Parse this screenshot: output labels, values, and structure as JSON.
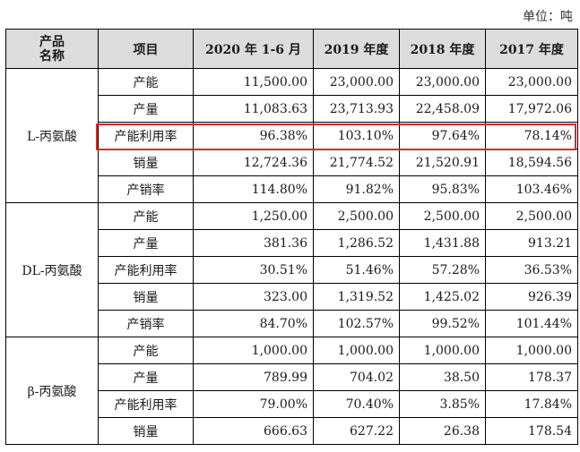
{
  "unit_label": "单位：吨",
  "headers": [
    "产品名称",
    "项目",
    "2020 年 1-6 月",
    "2019 年度",
    "2018 年度",
    "2017 年度"
  ],
  "header_product_lines": [
    "产品",
    "名称"
  ],
  "highlight_color": "#d62b2b",
  "groups": [
    {
      "product": "L-丙氨酸",
      "rows": [
        {
          "item": "产能",
          "values": [
            "11,500.00",
            "23,000.00",
            "23,000.00",
            "23,000.00"
          ]
        },
        {
          "item": "产量",
          "values": [
            "11,083.63",
            "23,713.93",
            "22,458.09",
            "17,972.06"
          ]
        },
        {
          "item": "产能利用率",
          "values": [
            "96.38%",
            "103.10%",
            "97.64%",
            "78.14%"
          ]
        },
        {
          "item": "销量",
          "values": [
            "12,724.36",
            "21,774.52",
            "21,520.91",
            "18,594.56"
          ]
        },
        {
          "item": "产销率",
          "values": [
            "114.80%",
            "91.82%",
            "95.83%",
            "103.46%"
          ]
        }
      ]
    },
    {
      "product": "DL-丙氨酸",
      "rows": [
        {
          "item": "产能",
          "values": [
            "1,250.00",
            "2,500.00",
            "2,500.00",
            "2,500.00"
          ]
        },
        {
          "item": "产量",
          "values": [
            "381.36",
            "1,286.52",
            "1,431.88",
            "913.21"
          ]
        },
        {
          "item": "产能利用率",
          "values": [
            "30.51%",
            "51.46%",
            "57.28%",
            "36.53%"
          ]
        },
        {
          "item": "销量",
          "values": [
            "323.00",
            "1,319.52",
            "1,425.02",
            "926.39"
          ]
        },
        {
          "item": "产销率",
          "values": [
            "84.70%",
            "102.57%",
            "99.52%",
            "101.44%"
          ]
        }
      ]
    },
    {
      "product": "β-丙氨酸",
      "rows": [
        {
          "item": "产能",
          "values": [
            "1,000.00",
            "1,000.00",
            "1,000.00",
            "1,000.00"
          ]
        },
        {
          "item": "产量",
          "values": [
            "789.99",
            "704.02",
            "38.50",
            "178.37"
          ]
        },
        {
          "item": "产能利用率",
          "values": [
            "79.00%",
            "70.40%",
            "3.85%",
            "17.84%"
          ]
        },
        {
          "item": "销量",
          "values": [
            "666.63",
            "627.22",
            "26.38",
            "178.54"
          ]
        }
      ]
    }
  ]
}
